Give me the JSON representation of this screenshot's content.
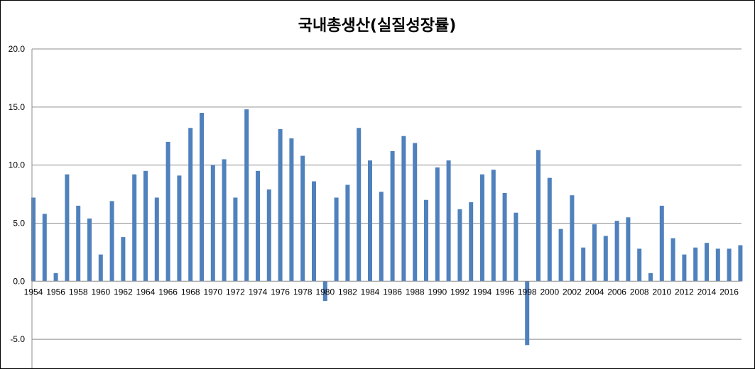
{
  "chart_data": {
    "type": "bar",
    "title": "국내총생산(실질성장률)",
    "xlabel": "",
    "ylabel": "",
    "ylim": [
      -7.5,
      20
    ],
    "y_ticks": [
      "20.0",
      "15.0",
      "10.0",
      "5.0",
      "0.0",
      "-5.0"
    ],
    "grid": true,
    "legend": "none",
    "bar_color": "#4F81BD",
    "categories": [
      "1954",
      "1955",
      "1956",
      "1957",
      "1958",
      "1959",
      "1960",
      "1961",
      "1962",
      "1963",
      "1964",
      "1965",
      "1966",
      "1967",
      "1968",
      "1969",
      "1970",
      "1971",
      "1972",
      "1973",
      "1974",
      "1975",
      "1976",
      "1977",
      "1978",
      "1979",
      "1980",
      "1981",
      "1982",
      "1983",
      "1984",
      "1985",
      "1986",
      "1987",
      "1988",
      "1989",
      "1990",
      "1991",
      "1992",
      "1993",
      "1994",
      "1995",
      "1996",
      "1997",
      "1998",
      "1999",
      "2000",
      "2001",
      "2002",
      "2003",
      "2004",
      "2005",
      "2006",
      "2007",
      "2008",
      "2009",
      "2010",
      "2011",
      "2012",
      "2013",
      "2014",
      "2015",
      "2016",
      "2017"
    ],
    "x_tick_labels": [
      "1954",
      "1956",
      "1958",
      "1960",
      "1962",
      "1964",
      "1966",
      "1968",
      "1970",
      "1972",
      "1974",
      "1976",
      "1978",
      "1980",
      "1982",
      "1984",
      "1986",
      "1988",
      "1990",
      "1992",
      "1994",
      "1996",
      "1998",
      "2000",
      "2002",
      "2004",
      "2006",
      "2008",
      "2010",
      "2012",
      "2014",
      "2016"
    ],
    "values": [
      7.2,
      5.8,
      0.7,
      9.2,
      6.5,
      5.4,
      2.3,
      6.9,
      3.8,
      9.2,
      9.5,
      7.2,
      12.0,
      9.1,
      13.2,
      14.5,
      10.0,
      10.5,
      7.2,
      14.8,
      9.5,
      7.9,
      13.1,
      12.3,
      10.8,
      8.6,
      -1.7,
      7.2,
      8.3,
      13.2,
      10.4,
      7.7,
      11.2,
      12.5,
      11.9,
      7.0,
      9.8,
      10.4,
      6.2,
      6.8,
      9.2,
      9.6,
      7.6,
      5.9,
      -5.5,
      11.3,
      8.9,
      4.5,
      7.4,
      2.9,
      4.9,
      3.9,
      5.2,
      5.5,
      2.8,
      0.7,
      6.5,
      3.7,
      2.3,
      2.9,
      3.3,
      2.8,
      2.8,
      3.1
    ]
  }
}
